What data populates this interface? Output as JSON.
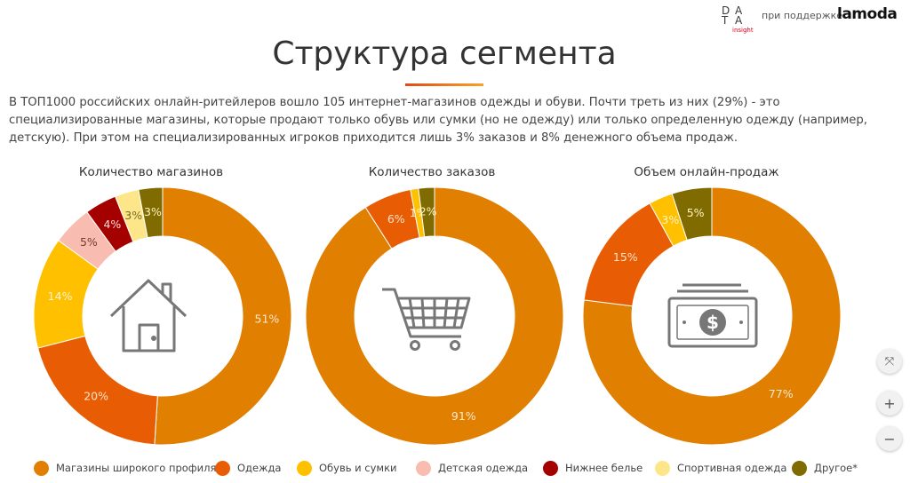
{
  "header": {
    "logo_letters": [
      "D",
      "A",
      "T",
      "A"
    ],
    "logo_sub": "insight",
    "support_text": "при поддержке",
    "partner_logo": "lamoda"
  },
  "title": "Структура сегмента",
  "lead_text": "В ТОП1000 российских онлайн-ритейлеров вошло 105 интернет-магазинов одежды и обуви. Почти треть из них (29%) - это специализированные магазины, которые продают только обувь или сумки (но не одежду) или только определенную одежду (например, детскую). При этом на специализированных игроков приходится лишь 3% заказов и 8% денежного объема продаж.",
  "colors": {
    "wide": "#e07f00",
    "clothes": "#e85d04",
    "shoes": "#ffc000",
    "kids": "#f8bcb0",
    "underwear": "#a50000",
    "sport": "#fde68a",
    "other": "#7f6b00"
  },
  "chart_data": [
    {
      "type": "pie",
      "title": "Количество магазинов",
      "center_icon": "house-icon",
      "slices": [
        {
          "category": "Магазины широкого профиля",
          "value": 51,
          "label": "51%"
        },
        {
          "category": "Одежда",
          "value": 20,
          "label": "20%"
        },
        {
          "category": "Обувь и сумки",
          "value": 14,
          "label": "14%"
        },
        {
          "category": "Детская одежда",
          "value": 5,
          "label": "5%"
        },
        {
          "category": "Нижнее белье",
          "value": 4,
          "label": "4%"
        },
        {
          "category": "Спортивная одежда",
          "value": 3,
          "label": "3%"
        },
        {
          "category": "Другое*",
          "value": 3,
          "label": "3%"
        }
      ]
    },
    {
      "type": "pie",
      "title": "Количество заказов",
      "center_icon": "shopping-cart-icon",
      "slices": [
        {
          "category": "Магазины широкого профиля",
          "value": 91,
          "label": "91%"
        },
        {
          "category": "Одежда",
          "value": 6,
          "label": "6%"
        },
        {
          "category": "Обувь и сумки",
          "value": 1,
          "label": "1%"
        },
        {
          "category": "Другое*",
          "value": 2,
          "label": "2%"
        }
      ]
    },
    {
      "type": "pie",
      "title": "Объем онлайн-продаж",
      "center_icon": "money-icon",
      "slices": [
        {
          "category": "Магазины широкого профиля",
          "value": 77,
          "label": "77%"
        },
        {
          "category": "Одежда",
          "value": 15,
          "label": "15%"
        },
        {
          "category": "Обувь и сумки",
          "value": 3,
          "label": "3%"
        },
        {
          "category": "Другое*",
          "value": 5,
          "label": "5%"
        }
      ]
    }
  ],
  "legend": [
    {
      "label": "Магазины широкого профиля",
      "color_key": "wide"
    },
    {
      "label": "Одежда",
      "color_key": "clothes"
    },
    {
      "label": "Обувь и сумки",
      "color_key": "shoes"
    },
    {
      "label": "Детская одежда",
      "color_key": "kids"
    },
    {
      "label": "Нижнее белье",
      "color_key": "underwear"
    },
    {
      "label": "Спортивная одежда",
      "color_key": "sport"
    },
    {
      "label": "Другое*",
      "color_key": "other"
    }
  ],
  "zoom_controls": [
    {
      "name": "fit-button",
      "icon": "fit-screen-icon",
      "glyph": "⤧"
    },
    {
      "name": "zoom-in-button",
      "icon": "plus-icon",
      "glyph": "+"
    },
    {
      "name": "zoom-out-button",
      "icon": "minus-icon",
      "glyph": "−"
    }
  ]
}
